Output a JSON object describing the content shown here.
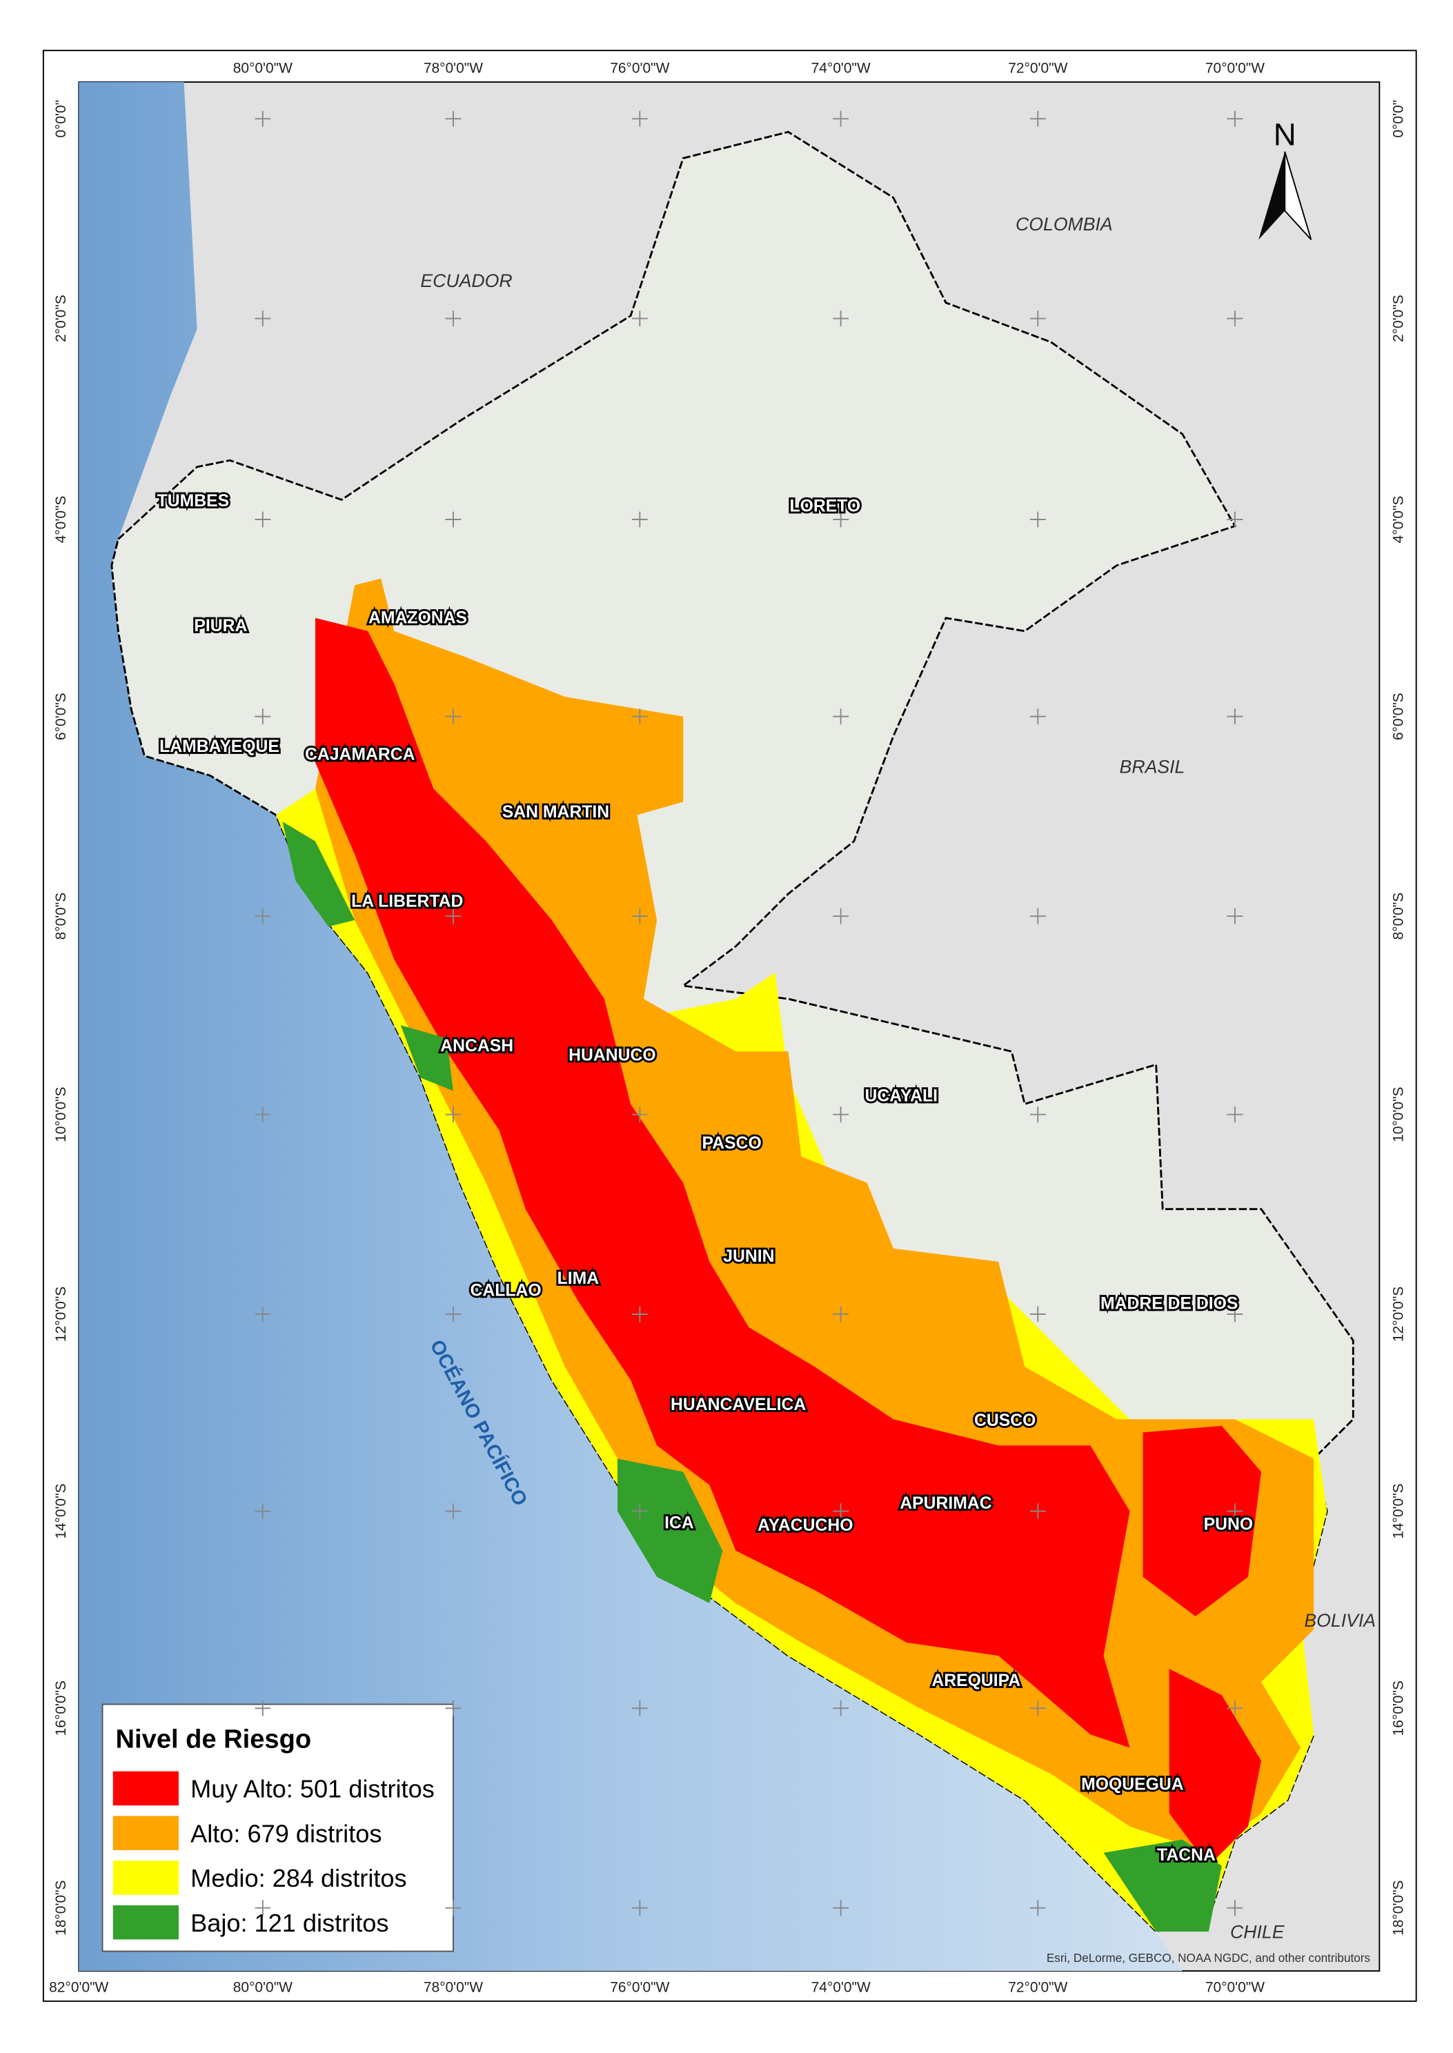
{
  "map": {
    "graticule": {
      "top": [
        "80°0'0\"W",
        "78°0'0\"W",
        "76°0'0\"W",
        "74°0'0\"W",
        "72°0'0\"W",
        "70°0'0\"W"
      ],
      "bottom": [
        "82°0'0\"W",
        "80°0'0\"W",
        "78°0'0\"W",
        "76°0'0\"W",
        "74°0'0\"W",
        "72°0'0\"W",
        "70°0'0\"W"
      ],
      "left": [
        "0°0'0\"",
        "2°0'0\"S",
        "4°0'0\"S",
        "6°0'0\"S",
        "8°0'0\"S",
        "10°0'0\"S",
        "12°0'0\"S",
        "14°0'0\"S",
        "16°0'0\"S",
        "18°0'0\"S"
      ],
      "right": [
        "0°0'0\"",
        "2°0'0\"S",
        "4°0'0\"S",
        "6°0'0\"S",
        "8°0'0\"S",
        "10°0'0\"S",
        "12°0'0\"S",
        "14°0'0\"S",
        "16°0'0\"S",
        "18°0'0\"S"
      ]
    },
    "north": "N",
    "countries": [
      "ECUADOR",
      "COLOMBIA",
      "BRASIL",
      "BOLIVIA",
      "CHILE"
    ],
    "ocean": "OCÉANO PACÍFICO",
    "regions": [
      "TUMBES",
      "PIURA",
      "AMAZONAS",
      "LAMBAYEQUE",
      "CAJAMARCA",
      "SAN MARTIN",
      "LORETO",
      "LA LIBERTAD",
      "ANCASH",
      "HUANUCO",
      "UCAYALI",
      "PASCO",
      "JUNIN",
      "CALLAO",
      "LIMA",
      "MADRE DE DIOS",
      "HUANCAVELICA",
      "CUSCO",
      "APURIMAC",
      "ICA",
      "AYACUCHO",
      "PUNO",
      "AREQUIPA",
      "MOQUEGUA",
      "TACNA"
    ],
    "legend": {
      "title": "Nivel de Riesgo",
      "items": [
        {
          "label": "Muy Alto: 501 distritos",
          "color": "#ff0000"
        },
        {
          "label": "Alto: 679 distritos",
          "color": "#ffa500"
        },
        {
          "label": "Medio: 284 distritos",
          "color": "#ffff00"
        },
        {
          "label": "Bajo: 121 distritos",
          "color": "#33a02c"
        }
      ]
    },
    "credit": "Esri, DeLorme, GEBCO, NOAA NGDC, and other contributors"
  }
}
